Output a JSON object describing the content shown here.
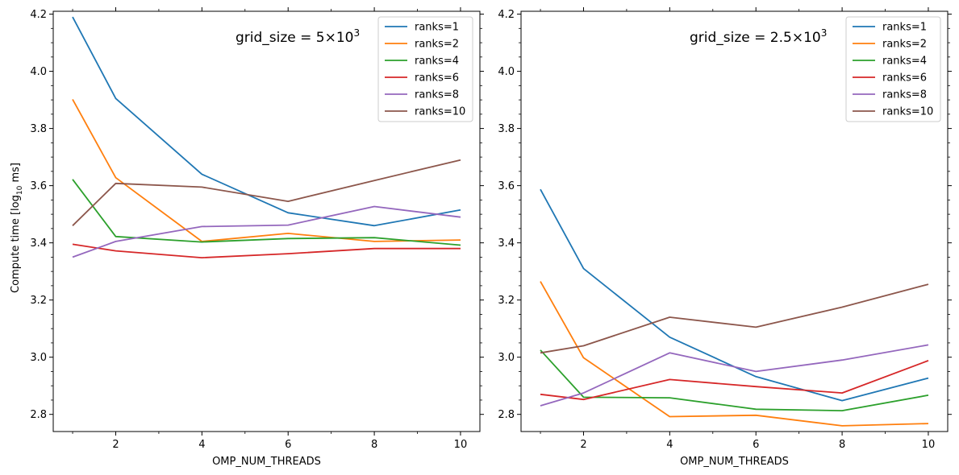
{
  "chart_data": [
    {
      "type": "line",
      "xlabel": "OMP_NUM_THREADS",
      "ylabel": "Compute time [log",
      "ylabel_sub": "10",
      "ylabel_end": " ms]",
      "annotation": "grid_size = 5×10",
      "annotation_exp": "3",
      "xlim": [
        0.55,
        10.45
      ],
      "ylim": [
        2.74,
        4.21
      ],
      "xticks": [
        2,
        4,
        6,
        8,
        10
      ],
      "xtick_labels": [
        "2",
        "4",
        "6",
        "8",
        "10"
      ],
      "yticks": [
        2.8,
        3.0,
        3.2,
        3.4,
        3.6,
        3.8,
        4.0,
        4.2
      ],
      "ytick_labels": [
        "2.8",
        "3.0",
        "3.2",
        "3.4",
        "3.6",
        "3.8",
        "4.0",
        "4.2"
      ],
      "x": [
        1,
        2,
        4,
        6,
        8,
        10
      ],
      "legend_position": "top-right",
      "series": [
        {
          "name": "ranks=1",
          "color": "#1f77b4",
          "values": [
            4.19,
            3.905,
            3.64,
            3.505,
            3.46,
            3.515
          ]
        },
        {
          "name": "ranks=2",
          "color": "#ff7f0e",
          "values": [
            3.902,
            3.628,
            3.405,
            3.433,
            3.405,
            3.41
          ]
        },
        {
          "name": "ranks=4",
          "color": "#2ca02c",
          "values": [
            3.622,
            3.422,
            3.403,
            3.415,
            3.418,
            3.392
          ]
        },
        {
          "name": "ranks=6",
          "color": "#d62728",
          "values": [
            3.395,
            3.372,
            3.348,
            3.362,
            3.38,
            3.38
          ]
        },
        {
          "name": "ranks=8",
          "color": "#9467bd",
          "values": [
            3.35,
            3.405,
            3.457,
            3.462,
            3.527,
            3.49
          ]
        },
        {
          "name": "ranks=10",
          "color": "#8c564b",
          "values": [
            3.46,
            3.608,
            3.595,
            3.545,
            3.618,
            3.69
          ]
        }
      ]
    },
    {
      "type": "line",
      "xlabel": "OMP_NUM_THREADS",
      "annotation": "grid_size = 2.5×10",
      "annotation_exp": "3",
      "xlim": [
        0.55,
        10.45
      ],
      "ylim": [
        2.74,
        4.21
      ],
      "xticks": [
        2,
        4,
        6,
        8,
        10
      ],
      "xtick_labels": [
        "2",
        "4",
        "6",
        "8",
        "10"
      ],
      "yticks": [
        2.8,
        3.0,
        3.2,
        3.4,
        3.6,
        3.8,
        4.0,
        4.2
      ],
      "ytick_labels": [
        "2.8",
        "3.0",
        "3.2",
        "3.4",
        "3.6",
        "3.8",
        "4.0",
        "4.2"
      ],
      "x": [
        1,
        2,
        4,
        6,
        8,
        10
      ],
      "legend_position": "top-right",
      "series": [
        {
          "name": "ranks=1",
          "color": "#1f77b4",
          "values": [
            3.587,
            3.31,
            3.07,
            2.932,
            2.848,
            2.927
          ]
        },
        {
          "name": "ranks=2",
          "color": "#ff7f0e",
          "values": [
            3.265,
            2.998,
            2.792,
            2.797,
            2.76,
            2.768
          ]
        },
        {
          "name": "ranks=4",
          "color": "#2ca02c",
          "values": [
            3.025,
            2.86,
            2.858,
            2.818,
            2.813,
            2.867
          ]
        },
        {
          "name": "ranks=6",
          "color": "#d62728",
          "values": [
            2.87,
            2.852,
            2.922,
            2.897,
            2.875,
            2.988
          ]
        },
        {
          "name": "ranks=8",
          "color": "#9467bd",
          "values": [
            2.83,
            2.875,
            3.015,
            2.95,
            2.99,
            3.043
          ]
        },
        {
          "name": "ranks=10",
          "color": "#8c564b",
          "values": [
            3.015,
            3.04,
            3.14,
            3.105,
            3.175,
            3.255
          ]
        }
      ]
    }
  ]
}
